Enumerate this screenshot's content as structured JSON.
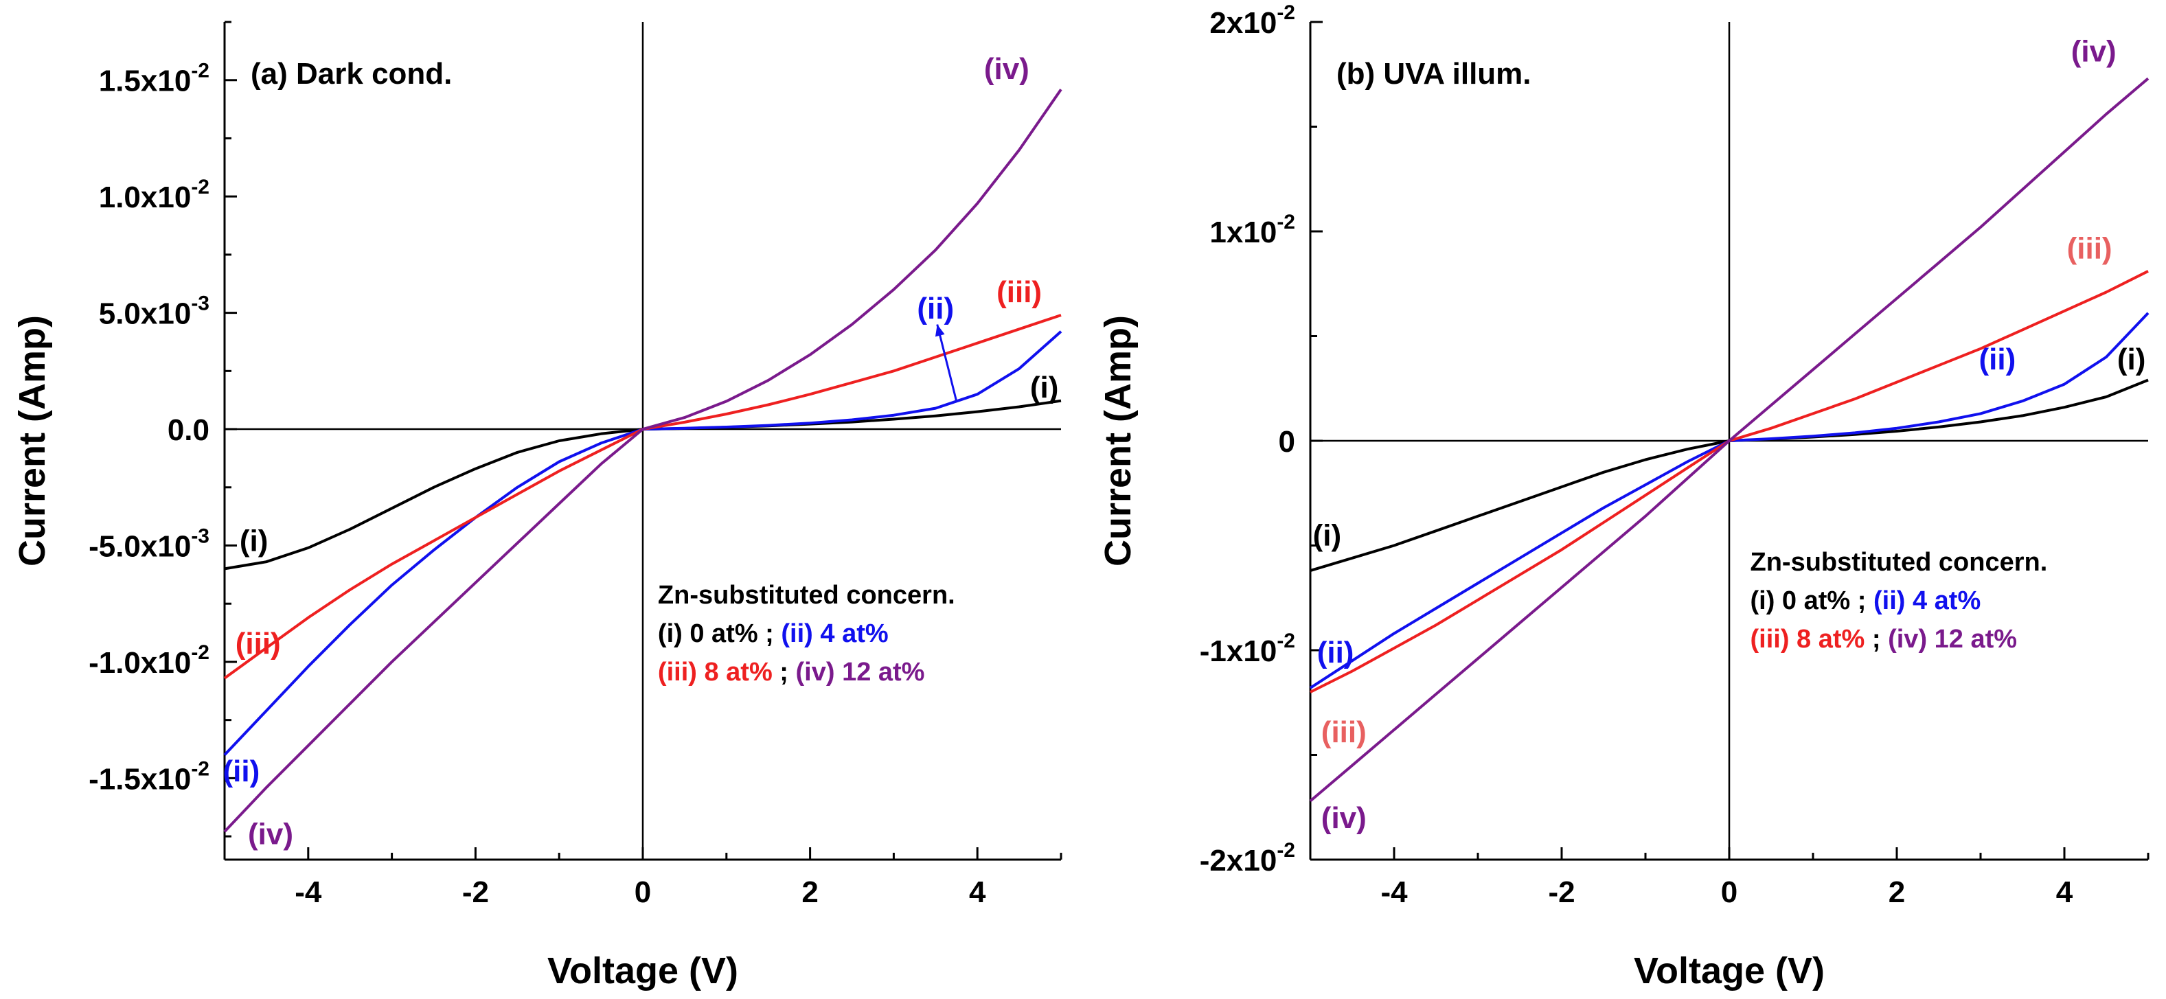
{
  "colors": {
    "i": "#000000",
    "ii": "#1010ee",
    "iii": "#ee2020",
    "iv": "#7a1a8c",
    "iii_label_b": "#e86060"
  },
  "chart_data": [
    {
      "type": "line",
      "panel_label": "(a) Dark cond.",
      "xlabel": "Voltage (V)",
      "ylabel": "Current (Amp)",
      "xlim": [
        -5,
        5
      ],
      "ylim": [
        -0.0185,
        0.0175
      ],
      "xticks": [
        -4,
        -2,
        0,
        2,
        4
      ],
      "xtick_labels": [
        "-4",
        "-2",
        "0",
        "2",
        "4"
      ],
      "yticks": [
        0.015,
        0.01,
        0.005,
        0.0,
        -0.005,
        -0.01,
        -0.015
      ],
      "ytick_labels": [
        {
          "mantissa": "1.5x10",
          "exp": "-2"
        },
        {
          "mantissa": "1.0x10",
          "exp": "-2"
        },
        {
          "mantissa": "5.0x10",
          "exp": "-3"
        },
        {
          "mantissa": "0.0",
          "exp": ""
        },
        {
          "mantissa": "-5.0x10",
          "exp": "-3"
        },
        {
          "mantissa": "-1.0x10",
          "exp": "-2"
        },
        {
          "mantissa": "-1.5x10",
          "exp": "-2"
        }
      ],
      "legend": {
        "title": "Zn-substituted concern.",
        "entries": [
          {
            "label": "(i) 0 at%",
            "series": "i"
          },
          {
            "label": "(ii) 4 at%",
            "series": "ii"
          },
          {
            "label": "(iii) 8 at%",
            "series": "iii"
          },
          {
            "label": "(iv) 12 at%",
            "series": "iv"
          }
        ],
        "separator": ";"
      },
      "curve_labels": [
        {
          "text": "(iv)",
          "series": "iv",
          "x": 4.35,
          "y": 0.0155
        },
        {
          "text": "(iii)",
          "series": "iii",
          "x": 4.5,
          "y": 0.0059
        },
        {
          "text": "(ii)",
          "series": "ii",
          "x": 3.5,
          "y": 0.0052
        },
        {
          "text": "(i)",
          "series": "i",
          "x": 4.8,
          "y": 0.0018
        },
        {
          "text": "(i)",
          "series": "i",
          "x": -4.65,
          "y": -0.0048
        },
        {
          "text": "(iii)",
          "series": "iii",
          "x": -4.6,
          "y": -0.0092
        },
        {
          "text": "(ii)",
          "series": "ii",
          "x": -4.8,
          "y": -0.0147
        },
        {
          "text": "(iv)",
          "series": "iv",
          "x": -4.45,
          "y": -0.0174
        }
      ],
      "series": [
        {
          "name": "(i)",
          "key": "i",
          "x": [
            -5,
            -4.5,
            -4,
            -3.5,
            -3,
            -2.5,
            -2,
            -1.5,
            -1,
            -0.5,
            0,
            0.5,
            1,
            1.5,
            2,
            2.5,
            3,
            3.5,
            4,
            4.5,
            5
          ],
          "y": [
            -0.006,
            -0.0057,
            -0.0051,
            -0.0043,
            -0.0034,
            -0.0025,
            -0.0017,
            -0.001,
            -0.0005,
            -0.0002,
            0,
            3e-05,
            8e-05,
            0.00014,
            0.00022,
            0.00031,
            0.00043,
            0.00057,
            0.00075,
            0.00096,
            0.00122
          ]
        },
        {
          "name": "(ii)",
          "key": "ii",
          "x": [
            -5,
            -4.5,
            -4,
            -3.5,
            -3,
            -2.5,
            -2,
            -1.5,
            -1,
            -0.5,
            0,
            0.5,
            1,
            1.5,
            2,
            2.5,
            3,
            3.5,
            4,
            4.5,
            5
          ],
          "y": [
            -0.014,
            -0.0121,
            -0.0102,
            -0.0084,
            -0.0067,
            -0.0052,
            -0.0038,
            -0.0025,
            -0.0014,
            -0.0006,
            0,
            4e-05,
            9e-05,
            0.00016,
            0.00026,
            0.0004,
            0.0006,
            0.0009,
            0.0015,
            0.0026,
            0.0042
          ]
        },
        {
          "name": "(iii)",
          "key": "iii",
          "x": [
            -5,
            -4.5,
            -4,
            -3.5,
            -3,
            -2.5,
            -2,
            -1.5,
            -1,
            -0.5,
            0,
            0.5,
            1,
            1.5,
            2,
            2.5,
            3,
            3.5,
            4,
            4.5,
            5
          ],
          "y": [
            -0.0107,
            -0.0094,
            -0.0081,
            -0.0069,
            -0.0058,
            -0.0048,
            -0.0038,
            -0.0028,
            -0.0018,
            -0.0009,
            0,
            0.0003,
            0.00065,
            0.00105,
            0.0015,
            0.002,
            0.0025,
            0.0031,
            0.0037,
            0.0043,
            0.0049
          ]
        },
        {
          "name": "(iv)",
          "key": "iv",
          "x": [
            -5,
            -4.5,
            -4,
            -3.5,
            -3,
            -2.5,
            -2,
            -1.5,
            -1,
            -0.5,
            0,
            0.5,
            1,
            1.5,
            2,
            2.5,
            3,
            3.5,
            4,
            4.5,
            5
          ],
          "y": [
            -0.0173,
            -0.0154,
            -0.0136,
            -0.0118,
            -0.01,
            -0.0083,
            -0.0066,
            -0.0049,
            -0.0032,
            -0.0015,
            0,
            0.0005,
            0.0012,
            0.0021,
            0.0032,
            0.0045,
            0.006,
            0.0077,
            0.0097,
            0.012,
            0.0146
          ]
        }
      ]
    },
    {
      "type": "line",
      "panel_label": "(b) UVA illum.",
      "xlabel": "Voltage (V)",
      "ylabel": "Current (Amp)",
      "xlim": [
        -5,
        5
      ],
      "ylim": [
        -0.02,
        0.02
      ],
      "xticks": [
        -4,
        -2,
        0,
        2,
        4
      ],
      "xtick_labels": [
        "-4",
        "-2",
        "0",
        "2",
        "4"
      ],
      "yticks": [
        0.02,
        0.01,
        0.0,
        -0.01,
        -0.02
      ],
      "ytick_labels": [
        {
          "mantissa": "2x10",
          "exp": "-2"
        },
        {
          "mantissa": "1x10",
          "exp": "-2"
        },
        {
          "mantissa": "0",
          "exp": ""
        },
        {
          "mantissa": "-1x10",
          "exp": "-2"
        },
        {
          "mantissa": "-2x10",
          "exp": "-2"
        }
      ],
      "legend": {
        "title": "Zn-substituted concern.",
        "entries": [
          {
            "label": "(i) 0 at%",
            "series": "i"
          },
          {
            "label": "(ii) 4 at%",
            "series": "ii"
          },
          {
            "label": "(iii) 8 at%",
            "series": "iii"
          },
          {
            "label": "(iv) 12 at%",
            "series": "iv"
          }
        ],
        "separator": ";"
      },
      "curve_labels": [
        {
          "text": "(iv)",
          "series": "iv",
          "x": 4.35,
          "y": 0.0186
        },
        {
          "text": "(iii)",
          "series": "iii_label_b",
          "x": 4.3,
          "y": 0.0092
        },
        {
          "text": "(ii)",
          "series": "ii",
          "x": 3.2,
          "y": 0.0039
        },
        {
          "text": "(i)",
          "series": "i",
          "x": 4.8,
          "y": 0.0039
        },
        {
          "text": "(i)",
          "series": "i",
          "x": -4.8,
          "y": -0.0045
        },
        {
          "text": "(ii)",
          "series": "ii",
          "x": -4.7,
          "y": -0.0101
        },
        {
          "text": "(iii)",
          "series": "iii_label_b",
          "x": -4.6,
          "y": -0.0139
        },
        {
          "text": "(iv)",
          "series": "iv",
          "x": -4.6,
          "y": -0.018
        }
      ],
      "series": [
        {
          "name": "(i)",
          "key": "i",
          "x": [
            -5,
            -4.5,
            -4,
            -3.5,
            -3,
            -2.5,
            -2,
            -1.5,
            -1,
            -0.5,
            0,
            0.5,
            1,
            1.5,
            2,
            2.5,
            3,
            3.5,
            4,
            4.5,
            5
          ],
          "y": [
            -0.0062,
            -0.0056,
            -0.005,
            -0.0043,
            -0.0036,
            -0.0029,
            -0.0022,
            -0.0015,
            -0.0009,
            -0.0004,
            0,
            8e-05,
            0.00018,
            0.0003,
            0.00046,
            0.00066,
            0.0009,
            0.0012,
            0.0016,
            0.0021,
            0.0029
          ]
        },
        {
          "name": "(ii)",
          "key": "ii",
          "x": [
            -5,
            -4.5,
            -4,
            -3.5,
            -3,
            -2.5,
            -2,
            -1.5,
            -1,
            -0.5,
            0,
            0.5,
            1,
            1.5,
            2,
            2.5,
            3,
            3.5,
            4,
            4.5,
            5
          ],
          "y": [
            -0.0118,
            -0.0105,
            -0.0092,
            -0.008,
            -0.0068,
            -0.0056,
            -0.0044,
            -0.0032,
            -0.0021,
            -0.001,
            0,
            0.0001,
            0.00022,
            0.00038,
            0.0006,
            0.0009,
            0.0013,
            0.0019,
            0.0027,
            0.004,
            0.0061
          ]
        },
        {
          "name": "(iii)",
          "key": "iii",
          "x": [
            -5,
            -4.5,
            -4,
            -3.5,
            -3,
            -2.5,
            -2,
            -1.5,
            -1,
            -0.5,
            0,
            0.5,
            1,
            1.5,
            2,
            2.5,
            3,
            3.5,
            4,
            4.5,
            5
          ],
          "y": [
            -0.012,
            -0.011,
            -0.0099,
            -0.0088,
            -0.0076,
            -0.0064,
            -0.0052,
            -0.0039,
            -0.0026,
            -0.0013,
            0,
            0.0006,
            0.0013,
            0.002,
            0.0028,
            0.0036,
            0.0044,
            0.0053,
            0.0062,
            0.0071,
            0.0081
          ]
        },
        {
          "name": "(iv)",
          "key": "iv",
          "x": [
            -5,
            -4.5,
            -4,
            -3.5,
            -3,
            -2.5,
            -2,
            -1.5,
            -1,
            -0.5,
            0,
            0.5,
            1,
            1.5,
            2,
            2.5,
            3,
            3.5,
            4,
            4.5,
            5
          ],
          "y": [
            -0.0172,
            -0.0155,
            -0.0138,
            -0.0121,
            -0.0104,
            -0.0087,
            -0.007,
            -0.0053,
            -0.0036,
            -0.0018,
            0,
            0.0017,
            0.0034,
            0.0051,
            0.0068,
            0.0085,
            0.0102,
            0.012,
            0.0138,
            0.0156,
            0.0173
          ]
        }
      ]
    }
  ]
}
